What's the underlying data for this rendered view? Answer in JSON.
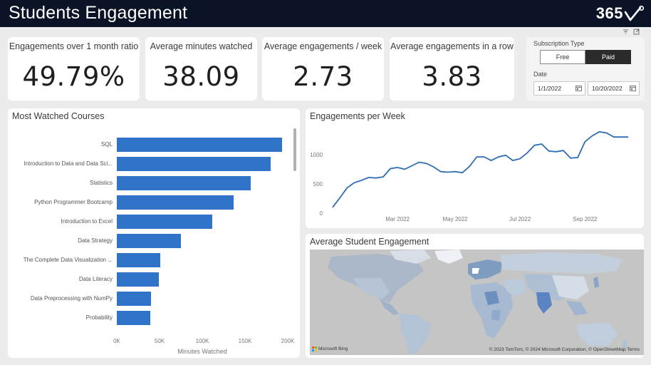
{
  "header": {
    "title": "Students Engagement",
    "logo_text": "365"
  },
  "kpis": [
    {
      "label": "Engagements over 1 month ratio",
      "value": "49.79%"
    },
    {
      "label": "Average minutes watched",
      "value": "38.09"
    },
    {
      "label": "Average engagements / week",
      "value": "2.73"
    },
    {
      "label": "Average engagements in a row",
      "value": "3.83"
    }
  ],
  "filters": {
    "subscription_label": "Subscription Type",
    "free_label": "Free",
    "paid_label": "Paid",
    "date_label": "Date",
    "date_start": "1/1/2022",
    "date_end": "10/20/2022"
  },
  "courses_panel": {
    "title": "Most Watched Courses",
    "xlabel": "Minutes Watched"
  },
  "weekly_panel": {
    "title": "Engagements per Week"
  },
  "map_panel": {
    "title": "Average Student Engagement",
    "provider": "Microsoft Bing",
    "attribution": "© 2023 TomTom, © 2024 Microsoft Corporation, © OpenStreetMap  Terms"
  },
  "chart_data": [
    {
      "type": "bar",
      "orientation": "horizontal",
      "title": "Most Watched Courses",
      "xlabel": "Minutes Watched",
      "categories": [
        "SQL",
        "Introduction to Data and Data Sci...",
        "Statistics",
        "Python Programmer Bootcamp",
        "Introduction to Excel",
        "Data Strategy",
        "The Complete Data Visualization ...",
        "Data Literacy",
        "Data Preprocessing with NumPy",
        "Probability"
      ],
      "values": [
        193000,
        180000,
        157000,
        137000,
        112000,
        75000,
        51000,
        49000,
        40000,
        39000
      ],
      "xlim": [
        0,
        200000
      ],
      "xticks": [
        "0K",
        "50K",
        "100K",
        "150K",
        "200K"
      ]
    },
    {
      "type": "line",
      "title": "Engagements per Week",
      "x": [
        "2022-01-03",
        "2022-01-10",
        "2022-01-17",
        "2022-01-24",
        "2022-01-31",
        "2022-02-07",
        "2022-02-14",
        "2022-02-21",
        "2022-02-28",
        "2022-03-07",
        "2022-03-14",
        "2022-03-21",
        "2022-03-28",
        "2022-04-04",
        "2022-04-11",
        "2022-04-18",
        "2022-04-25",
        "2022-05-02",
        "2022-05-09",
        "2022-05-16",
        "2022-05-23",
        "2022-05-30",
        "2022-06-06",
        "2022-06-13",
        "2022-06-20",
        "2022-06-27",
        "2022-07-04",
        "2022-07-11",
        "2022-07-18",
        "2022-07-25",
        "2022-08-01",
        "2022-08-08",
        "2022-08-15",
        "2022-08-22",
        "2022-08-29",
        "2022-09-05",
        "2022-09-12",
        "2022-09-19",
        "2022-09-26",
        "2022-10-03",
        "2022-10-10",
        "2022-10-17"
      ],
      "values": [
        100,
        260,
        430,
        520,
        560,
        610,
        600,
        620,
        760,
        780,
        750,
        810,
        870,
        850,
        790,
        710,
        700,
        710,
        690,
        800,
        960,
        960,
        900,
        960,
        990,
        900,
        930,
        1030,
        1160,
        1180,
        1060,
        1050,
        1070,
        940,
        950,
        1220,
        1320,
        1390,
        1370,
        1300,
        1300,
        1300
      ],
      "ylim": [
        0,
        1400
      ],
      "yticks": [
        "0",
        "500",
        "1000"
      ],
      "xticks": [
        "Mar 2022",
        "May 2022",
        "Jul 2022",
        "Sep 2022"
      ]
    }
  ]
}
